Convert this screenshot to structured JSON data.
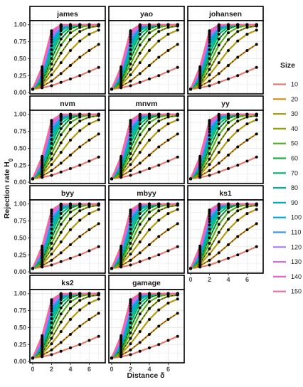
{
  "chart_data": {
    "type": "line",
    "xlabel": "Distance δ",
    "ylabel_main": "Rejection rate H",
    "ylabel_sub": "0",
    "xlim": [
      -0.3,
      7.7
    ],
    "ylim": [
      -0.02,
      1.06
    ],
    "x_ticks": [
      0,
      2,
      4,
      6
    ],
    "y_ticks": [
      0.0,
      0.25,
      0.5,
      0.75,
      1.0
    ],
    "y_tick_labels": [
      "0.00",
      "0.25",
      "0.50",
      "0.75",
      "1.00"
    ],
    "grid": true,
    "legend_title": "Size",
    "legend_position": "right",
    "x": [
      0,
      1,
      2,
      3,
      4,
      5,
      6,
      7
    ],
    "panels": [
      "james",
      "yao",
      "johansen",
      "nvm",
      "mnvm",
      "yy",
      "byy",
      "mbyy",
      "ks1",
      "ks2",
      "gamage"
    ],
    "series": [
      {
        "name": "10",
        "color": "#e8796f",
        "values": [
          0.05,
          0.07,
          0.1,
          0.15,
          0.2,
          0.25,
          0.31,
          0.37
        ]
      },
      {
        "name": "20",
        "color": "#cf8e0f",
        "values": [
          0.05,
          0.09,
          0.17,
          0.28,
          0.4,
          0.52,
          0.62,
          0.71
        ]
      },
      {
        "name": "30",
        "color": "#b39b0e",
        "values": [
          0.05,
          0.11,
          0.26,
          0.44,
          0.62,
          0.76,
          0.86,
          0.92
        ]
      },
      {
        "name": "40",
        "color": "#8aa30d",
        "values": [
          0.05,
          0.13,
          0.34,
          0.58,
          0.78,
          0.9,
          0.96,
          0.98
        ]
      },
      {
        "name": "50",
        "color": "#55ad1b",
        "values": [
          0.05,
          0.15,
          0.42,
          0.7,
          0.88,
          0.96,
          0.99,
          1.0
        ]
      },
      {
        "name": "60",
        "color": "#1db23e",
        "values": [
          0.05,
          0.17,
          0.5,
          0.79,
          0.94,
          0.99,
          1.0,
          1.0
        ]
      },
      {
        "name": "70",
        "color": "#00b46c",
        "values": [
          0.05,
          0.2,
          0.57,
          0.86,
          0.97,
          1.0,
          1.0,
          1.0
        ]
      },
      {
        "name": "80",
        "color": "#00b396",
        "values": [
          0.05,
          0.22,
          0.63,
          0.91,
          0.99,
          1.0,
          1.0,
          1.0
        ]
      },
      {
        "name": "90",
        "color": "#00afbd",
        "values": [
          0.05,
          0.24,
          0.69,
          0.94,
          0.99,
          1.0,
          1.0,
          1.0
        ]
      },
      {
        "name": "100",
        "color": "#00a5db",
        "values": [
          0.05,
          0.26,
          0.74,
          0.96,
          1.0,
          1.0,
          1.0,
          1.0
        ]
      },
      {
        "name": "110",
        "color": "#3a96f0",
        "values": [
          0.05,
          0.28,
          0.78,
          0.97,
          1.0,
          1.0,
          1.0,
          1.0
        ]
      },
      {
        "name": "120",
        "color": "#a47cf2",
        "values": [
          0.05,
          0.31,
          0.82,
          0.98,
          1.0,
          1.0,
          1.0,
          1.0
        ]
      },
      {
        "name": "130",
        "color": "#d86ae5",
        "values": [
          0.05,
          0.33,
          0.86,
          0.99,
          1.0,
          1.0,
          1.0,
          1.0
        ]
      },
      {
        "name": "140",
        "color": "#ea5fcb",
        "values": [
          0.05,
          0.36,
          0.89,
          0.99,
          1.0,
          1.0,
          1.0,
          1.0
        ]
      },
      {
        "name": "150",
        "color": "#f26a9c",
        "values": [
          0.05,
          0.38,
          0.91,
          1.0,
          1.0,
          1.0,
          1.0,
          1.0
        ]
      }
    ],
    "dashed_series": [
      "20",
      "40",
      "60"
    ],
    "colors": {
      "grid": "#ebebeb",
      "point": "#000000",
      "strip_border": "#000000",
      "panel_border": "#000000"
    }
  }
}
